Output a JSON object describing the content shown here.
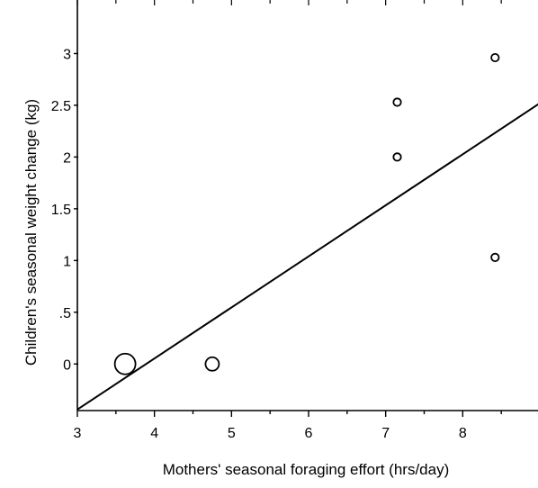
{
  "chart_data": {
    "type": "scatter",
    "title": "",
    "xlabel": "Mothers' seasonal foraging effort (hrs/day)",
    "ylabel": "Children's seasonal weight change (kg)",
    "xlim": [
      3,
      9
    ],
    "ylim": [
      -0.45,
      3.5
    ],
    "x_ticks": [
      3,
      4,
      5,
      6,
      7,
      8
    ],
    "x_tick_labels": [
      "3",
      "4",
      "5",
      "6",
      "7",
      "8"
    ],
    "y_ticks": [
      0,
      0.5,
      1,
      1.5,
      2,
      2.5,
      3
    ],
    "y_tick_labels": [
      "0",
      ".5",
      "1",
      "1.5",
      "2",
      "2.5",
      "3"
    ],
    "grid": false,
    "legend": "none",
    "series": [
      {
        "marker": "open-circle",
        "points": [
          {
            "x": 3.62,
            "y": 0.0,
            "size": "large"
          },
          {
            "x": 4.75,
            "y": 0.0,
            "size": "medium"
          },
          {
            "x": 7.15,
            "y": 2.53,
            "size": "small"
          },
          {
            "x": 7.15,
            "y": 2.0,
            "size": "small"
          },
          {
            "x": 8.42,
            "y": 2.96,
            "size": "small"
          },
          {
            "x": 8.42,
            "y": 1.03,
            "size": "small"
          }
        ]
      }
    ],
    "fit_line": {
      "points": [
        [
          3.0,
          -0.44
        ],
        [
          9.0,
          2.52
        ]
      ]
    },
    "colors": {
      "axis": "#000000",
      "marker": "#000000",
      "line": "#000000"
    }
  }
}
